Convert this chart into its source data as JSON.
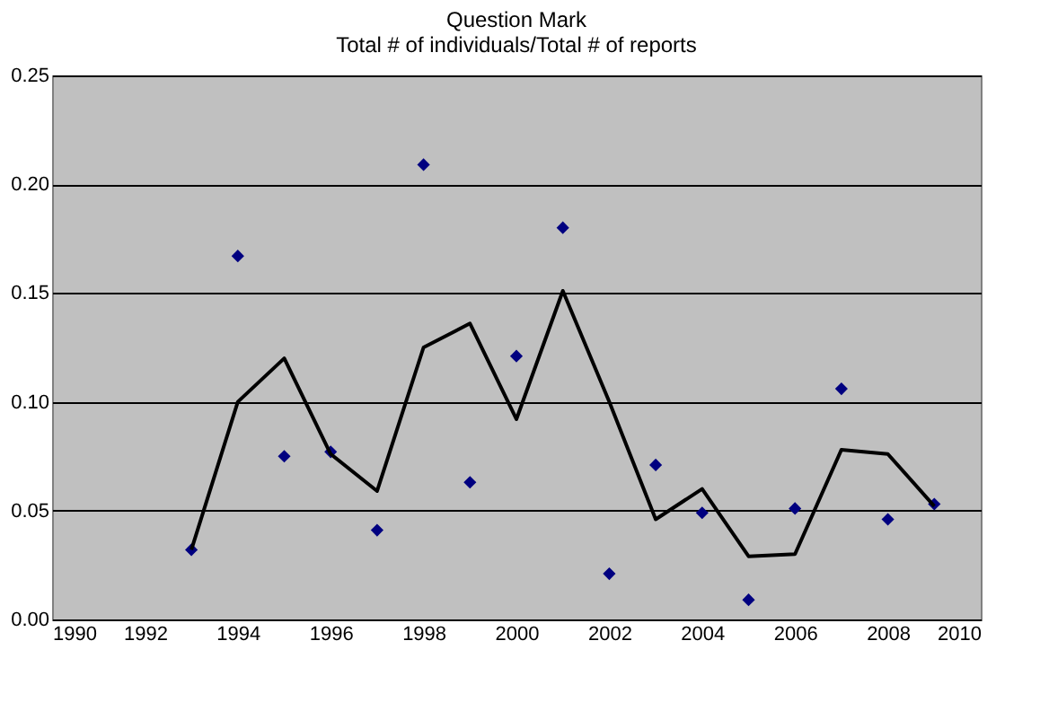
{
  "chart_data": {
    "type": "scatter",
    "title": "Question Mark",
    "subtitle": "Total # of individuals/Total # of reports",
    "x": [
      1993,
      1994,
      1995,
      1996,
      1997,
      1998,
      1999,
      2000,
      2001,
      2002,
      2003,
      2004,
      2005,
      2006,
      2007,
      2008,
      2009
    ],
    "series": [
      {
        "color": "#000080",
        "marker": "diamond",
        "values": [
          0.032,
          0.167,
          0.075,
          0.077,
          0.041,
          0.209,
          0.063,
          0.121,
          0.18,
          0.021,
          0.071,
          0.049,
          0.009,
          0.051,
          0.106,
          0.046,
          0.053
        ]
      },
      {
        "type": "line",
        "color": "#000000",
        "marker": "none",
        "line_style": "solid",
        "values": [
          0.032,
          0.1,
          0.12,
          0.076,
          0.059,
          0.125,
          0.136,
          0.092,
          0.151,
          0.1,
          0.046,
          0.06,
          0.029,
          0.03,
          0.078,
          0.076,
          0.052
        ]
      }
    ],
    "xlim": [
      1990,
      2010
    ],
    "xticks": [
      1990,
      1992,
      1994,
      1996,
      1998,
      2000,
      2002,
      2004,
      2006,
      2008,
      2010
    ],
    "ylim": [
      0,
      0.25
    ],
    "yticks": [
      {
        "value": 0,
        "label": "0.00"
      },
      {
        "value": 0.05,
        "label": "0.05"
      },
      {
        "value": 0.1,
        "label": "0.10"
      },
      {
        "value": 0.15,
        "label": "0.15"
      },
      {
        "value": 0.2,
        "label": "0.20"
      },
      {
        "value": 0.25,
        "label": "0.25"
      }
    ],
    "grid": "y"
  }
}
